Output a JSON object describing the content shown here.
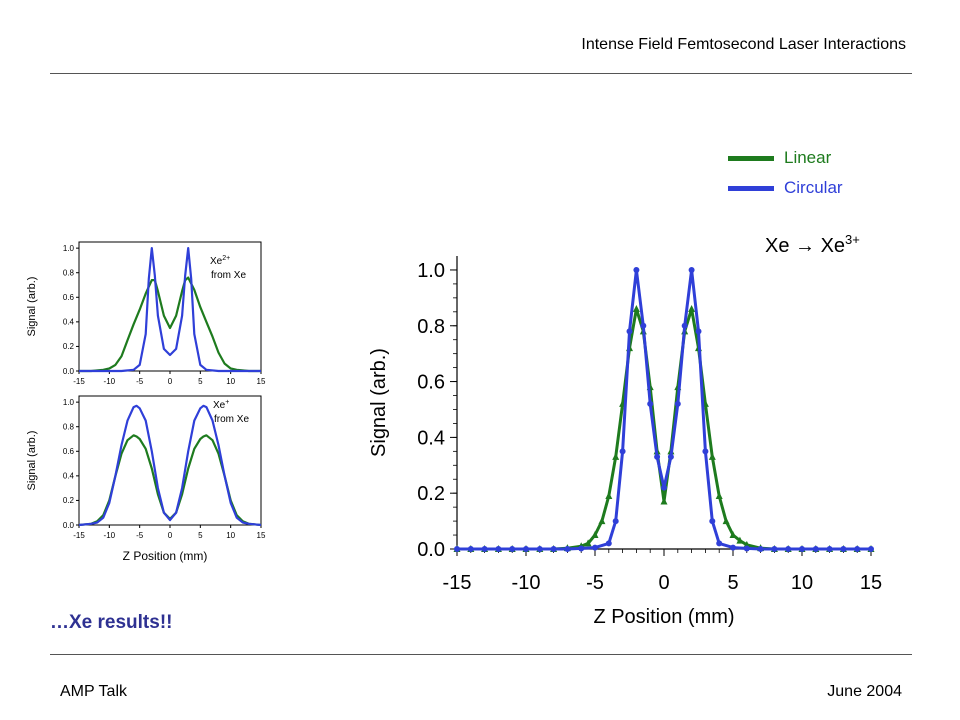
{
  "header": {
    "title": "Intense Field Femtosecond Laser Interactions"
  },
  "footer": {
    "left": "AMP Talk",
    "right": "June 2004"
  },
  "caption": "…Xe results!!",
  "legend": {
    "entries": [
      {
        "label": "Linear",
        "color": "#1e7b1e"
      },
      {
        "label": "Circular",
        "color": "#2f3fd8"
      }
    ]
  },
  "chart_data": [
    {
      "id": "main",
      "type": "line",
      "title": "Xe → Xe",
      "title_superscript": "3+",
      "xlabel": "Z Position (mm)",
      "ylabel": "Signal (arb.)",
      "xlim": [
        -15,
        15
      ],
      "ylim": [
        0,
        1.05
      ],
      "xticks": [
        "-15",
        "-10",
        "-5",
        "0",
        "5",
        "10",
        "15"
      ],
      "yticks": [
        "0.0",
        "0.2",
        "0.4",
        "0.6",
        "0.8",
        "1.0"
      ],
      "series": [
        {
          "name": "Linear",
          "color": "#1e7b1e",
          "marker": "triangle",
          "x": [
            -15,
            -14,
            -13,
            -12,
            -11,
            -10,
            -9,
            -8,
            -7,
            -6,
            -5.5,
            -5,
            -4.5,
            -4,
            -3.5,
            -3,
            -2.5,
            -2,
            -1.5,
            -1,
            -0.5,
            0,
            0.5,
            1,
            1.5,
            2,
            2.5,
            3,
            3.5,
            4,
            4.5,
            5,
            5.5,
            6,
            7,
            8,
            9,
            10,
            11,
            12,
            13,
            14,
            15
          ],
          "y": [
            0,
            0,
            0,
            0,
            0,
            0,
            0,
            0,
            0.003,
            0.01,
            0.02,
            0.05,
            0.1,
            0.19,
            0.33,
            0.52,
            0.72,
            0.86,
            0.78,
            0.58,
            0.35,
            0.17,
            0.35,
            0.58,
            0.78,
            0.86,
            0.72,
            0.52,
            0.33,
            0.19,
            0.1,
            0.05,
            0.03,
            0.015,
            0.003,
            0,
            0,
            0,
            0,
            0,
            0,
            0,
            0
          ]
        },
        {
          "name": "Circular",
          "color": "#2f3fd8",
          "marker": "dot",
          "x": [
            -15,
            -14,
            -13,
            -12,
            -11,
            -10,
            -9,
            -8,
            -7,
            -6,
            -5,
            -4,
            -3.5,
            -3,
            -2.5,
            -2,
            -1.5,
            -1,
            -0.5,
            0,
            0.5,
            1,
            1.5,
            2,
            2.5,
            3,
            3.5,
            4,
            5,
            6,
            7,
            8,
            9,
            10,
            11,
            12,
            13,
            14,
            15
          ],
          "y": [
            0,
            0,
            0,
            0,
            0,
            0,
            0,
            0,
            0,
            0.002,
            0.005,
            0.02,
            0.1,
            0.35,
            0.78,
            1.0,
            0.8,
            0.52,
            0.33,
            0.22,
            0.33,
            0.52,
            0.8,
            1.0,
            0.78,
            0.35,
            0.1,
            0.02,
            0.005,
            0.002,
            0,
            0,
            0,
            0,
            0,
            0,
            0,
            0,
            0
          ]
        }
      ]
    },
    {
      "id": "inset-top",
      "type": "line",
      "annotation": "Xe",
      "annotation_superscript": "2+",
      "annotation_line2": "from Xe",
      "ylabel": "Signal (arb.)",
      "xlim": [
        -15,
        15
      ],
      "ylim": [
        0,
        1.05
      ],
      "xticks": [
        "-15",
        "-10",
        "-5",
        "0",
        "5",
        "10",
        "15"
      ],
      "yticks": [
        "0.0",
        "0.2",
        "0.4",
        "0.6",
        "0.8",
        "1.0"
      ],
      "series": [
        {
          "name": "Linear",
          "color": "#1e7b1e",
          "x": [
            -15,
            -13,
            -11,
            -10,
            -9,
            -8,
            -7,
            -6,
            -5,
            -4,
            -3,
            -2.5,
            -2,
            -1,
            0,
            1,
            2,
            2.5,
            3,
            4,
            5,
            6,
            7,
            8,
            9,
            10,
            11,
            13,
            15
          ],
          "y": [
            0,
            0,
            0.01,
            0.02,
            0.05,
            0.12,
            0.25,
            0.38,
            0.5,
            0.63,
            0.74,
            0.74,
            0.65,
            0.45,
            0.35,
            0.45,
            0.65,
            0.74,
            0.76,
            0.66,
            0.52,
            0.4,
            0.28,
            0.15,
            0.06,
            0.02,
            0.01,
            0,
            0
          ]
        },
        {
          "name": "Circular",
          "color": "#2f3fd8",
          "x": [
            -15,
            -8,
            -6,
            -5,
            -4,
            -3.5,
            -3,
            -2.5,
            -2,
            -1,
            0,
            1,
            2,
            2.5,
            3,
            3.5,
            4,
            5,
            6,
            8,
            15
          ],
          "y": [
            0,
            0,
            0.01,
            0.05,
            0.3,
            0.75,
            1.0,
            0.78,
            0.45,
            0.18,
            0.13,
            0.18,
            0.45,
            0.78,
            1.0,
            0.75,
            0.3,
            0.05,
            0.01,
            0,
            0
          ]
        }
      ]
    },
    {
      "id": "inset-bottom",
      "type": "line",
      "annotation": "Xe",
      "annotation_superscript": "+",
      "annotation_line2": "from Xe",
      "xlabel": "Z Position (mm)",
      "ylabel": "Signal (arb.)",
      "xlim": [
        -15,
        15
      ],
      "ylim": [
        0,
        1.05
      ],
      "xticks": [
        "-15",
        "-10",
        "-5",
        "0",
        "5",
        "10",
        "15"
      ],
      "yticks": [
        "0.0",
        "0.2",
        "0.4",
        "0.6",
        "0.8",
        "1.0"
      ],
      "series": [
        {
          "name": "Linear",
          "color": "#1e7b1e",
          "x": [
            -15,
            -13,
            -12,
            -11,
            -10,
            -9,
            -8,
            -7,
            -6,
            -5.5,
            -5,
            -4,
            -3,
            -2,
            -1,
            0,
            1,
            2,
            3,
            4,
            5,
            5.5,
            6,
            7,
            8,
            9,
            10,
            11,
            12,
            13,
            15
          ],
          "y": [
            0,
            0.01,
            0.03,
            0.08,
            0.2,
            0.4,
            0.58,
            0.69,
            0.73,
            0.72,
            0.7,
            0.62,
            0.46,
            0.25,
            0.1,
            0.05,
            0.1,
            0.25,
            0.46,
            0.62,
            0.7,
            0.72,
            0.73,
            0.69,
            0.58,
            0.4,
            0.2,
            0.08,
            0.03,
            0.01,
            0
          ]
        },
        {
          "name": "Circular",
          "color": "#2f3fd8",
          "x": [
            -15,
            -13,
            -12,
            -11,
            -10,
            -9,
            -8,
            -7,
            -6,
            -5.5,
            -5,
            -4,
            -3,
            -2,
            -1,
            0,
            1,
            2,
            3,
            4,
            5,
            5.5,
            6,
            7,
            8,
            9,
            10,
            11,
            12,
            13,
            15
          ],
          "y": [
            0,
            0.01,
            0.02,
            0.06,
            0.18,
            0.4,
            0.65,
            0.85,
            0.96,
            0.97,
            0.95,
            0.85,
            0.6,
            0.3,
            0.1,
            0.04,
            0.1,
            0.3,
            0.6,
            0.85,
            0.95,
            0.97,
            0.96,
            0.85,
            0.65,
            0.4,
            0.18,
            0.06,
            0.02,
            0.01,
            0
          ]
        }
      ]
    }
  ]
}
